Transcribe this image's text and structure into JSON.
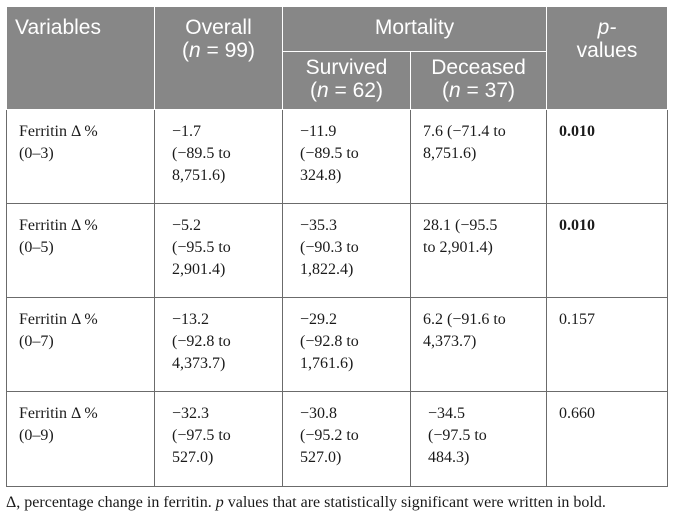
{
  "header": {
    "variables": "Variables",
    "overall_line1": "Overall",
    "overall_line2_open": "(",
    "overall_n": "n",
    "overall_line2_rest": " = 99)",
    "mortality": "Mortality",
    "survived_line1": "Survived",
    "survived_open": "(",
    "survived_n": "n",
    "survived_rest": " = 62)",
    "deceased_line1": "Deceased",
    "deceased_open": "(",
    "deceased_n": "n",
    "deceased_rest": " = 37)",
    "p_line1": "p-",
    "p_line2": "values"
  },
  "rows": [
    {
      "variable_line1": "Ferritin Δ %",
      "variable_line2": "(0–3)",
      "overall": [
        "−1.7",
        "(−89.5 to",
        "8,751.6)"
      ],
      "survived": [
        "−11.9",
        "(−89.5 to",
        "324.8)"
      ],
      "deceased": [
        "7.6 (−71.4 to",
        "8,751.6)",
        ""
      ],
      "p": "0.010",
      "p_bold": true
    },
    {
      "variable_line1": "Ferritin Δ %",
      "variable_line2": "(0–5)",
      "overall": [
        "−5.2",
        "(−95.5 to",
        "2,901.4)"
      ],
      "survived": [
        "−35.3",
        "(−90.3 to",
        "1,822.4)"
      ],
      "deceased": [
        "28.1 (−95.5",
        "to 2,901.4)",
        ""
      ],
      "p": "0.010",
      "p_bold": true
    },
    {
      "variable_line1": "Ferritin Δ %",
      "variable_line2": "(0–7)",
      "overall": [
        "−13.2",
        "(−92.8 to",
        "4,373.7)"
      ],
      "survived": [
        "−29.2",
        "(−92.8 to",
        "1,761.6)"
      ],
      "deceased": [
        "6.2 (−91.6 to",
        "4,373.7)",
        ""
      ],
      "p": "0.157",
      "p_bold": false
    },
    {
      "variable_line1": "Ferritin Δ %",
      "variable_line2": "(0–9)",
      "overall": [
        "−32.3",
        "(−97.5 to",
        "527.0)"
      ],
      "survived": [
        "−30.8",
        "(−95.2 to",
        "527.0)"
      ],
      "deceased": [
        "−34.5",
        "(−97.5 to",
        "484.3)"
      ],
      "p": "0.660",
      "p_bold": false
    }
  ],
  "footnote": {
    "part1": "Δ, percentage change in ferritin. ",
    "p_italic": "p",
    "part2": " values that are statistically significant were written in bold."
  }
}
